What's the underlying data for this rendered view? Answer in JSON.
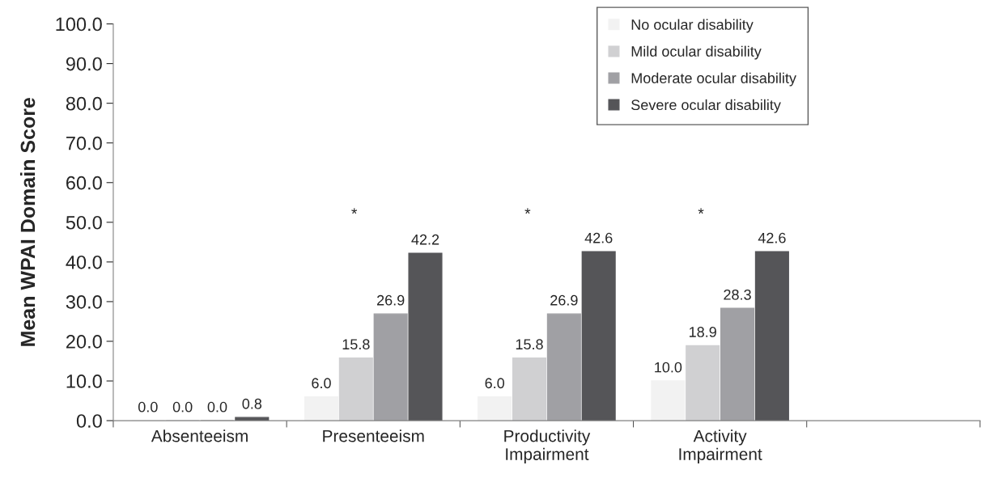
{
  "chart_data": {
    "type": "bar",
    "ylabel": "Mean WPAI Domain Score",
    "categories": [
      "Absenteeism",
      "Presenteeism",
      "Productivity\nImpairment",
      "Activity\nImpairment",
      null
    ],
    "series": [
      {
        "name": "No ocular disability",
        "color": "#f2f2f2",
        "values": [
          0.0,
          6.0,
          6.0,
          10.0,
          null
        ],
        "value_labels": [
          "0.0",
          "6.0",
          "6.0",
          "10.0",
          null
        ]
      },
      {
        "name": "Mild ocular disability",
        "color": "#d0d0d2",
        "values": [
          0.0,
          15.8,
          15.8,
          18.9,
          null
        ],
        "value_labels": [
          "0.0",
          "15.8",
          "15.8",
          "18.9",
          null
        ]
      },
      {
        "name": "Moderate ocular disability",
        "color": "#a0a0a4",
        "values": [
          0.0,
          26.9,
          26.9,
          28.3,
          null
        ],
        "value_labels": [
          "0.0",
          "26.9",
          "26.9",
          "28.3",
          null
        ]
      },
      {
        "name": "Severe ocular disability",
        "color": "#555558",
        "values": [
          0.8,
          42.2,
          42.6,
          42.6,
          null
        ],
        "value_labels": [
          "0.8",
          "42.2",
          "42.6",
          "42.6",
          null
        ]
      }
    ],
    "ylim": [
      0,
      100
    ],
    "yticks": [
      {
        "value": 0,
        "label": "0.0"
      },
      {
        "value": 10,
        "label": "10.0"
      },
      {
        "value": 20,
        "label": "20.0"
      },
      {
        "value": 30,
        "label": "30.0"
      },
      {
        "value": 40,
        "label": "40.0"
      },
      {
        "value": 50,
        "label": "50.0"
      },
      {
        "value": 60,
        "label": "60.0"
      },
      {
        "value": 70,
        "label": "70.0"
      },
      {
        "value": 80,
        "label": "80.0"
      },
      {
        "value": 90,
        "label": "90.0"
      },
      {
        "value": 100,
        "label": "100.0"
      }
    ],
    "annotations": [
      "*",
      "*",
      "*"
    ],
    "grid": false,
    "legend": "top right"
  }
}
